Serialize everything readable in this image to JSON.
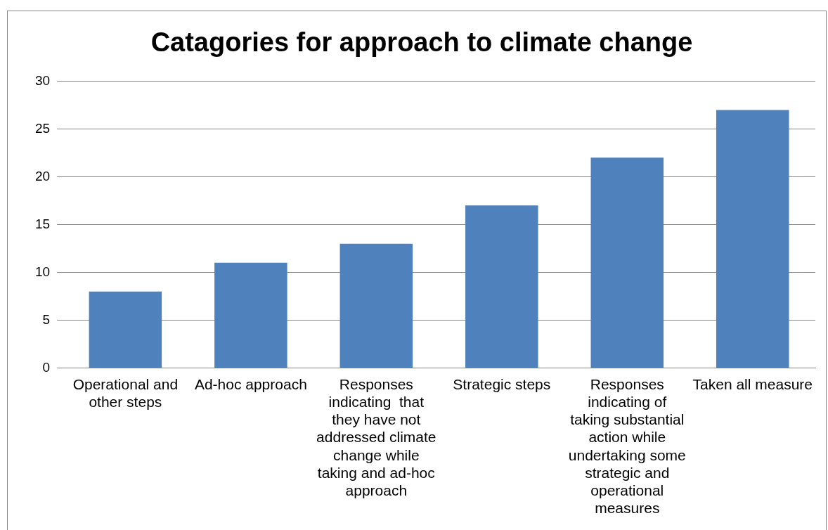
{
  "chart_data": {
    "type": "bar",
    "title": "Catagories for approach to climate change",
    "categories": [
      "Operational and other steps",
      "Ad-hoc approach",
      "Responses indicating  that they have not addressed climate change while taking and ad-hoc approach",
      "Strategic steps",
      "Responses indicating of taking substantial action while undertaking some strategic and operational measures",
      "Taken all measure"
    ],
    "values": [
      8,
      11,
      13,
      17,
      22,
      27
    ],
    "color": "#4f81bd",
    "ylim": [
      0,
      30
    ],
    "yticks": [
      0,
      5,
      10,
      15,
      20,
      25,
      30
    ],
    "grid": "y",
    "legend": false
  }
}
